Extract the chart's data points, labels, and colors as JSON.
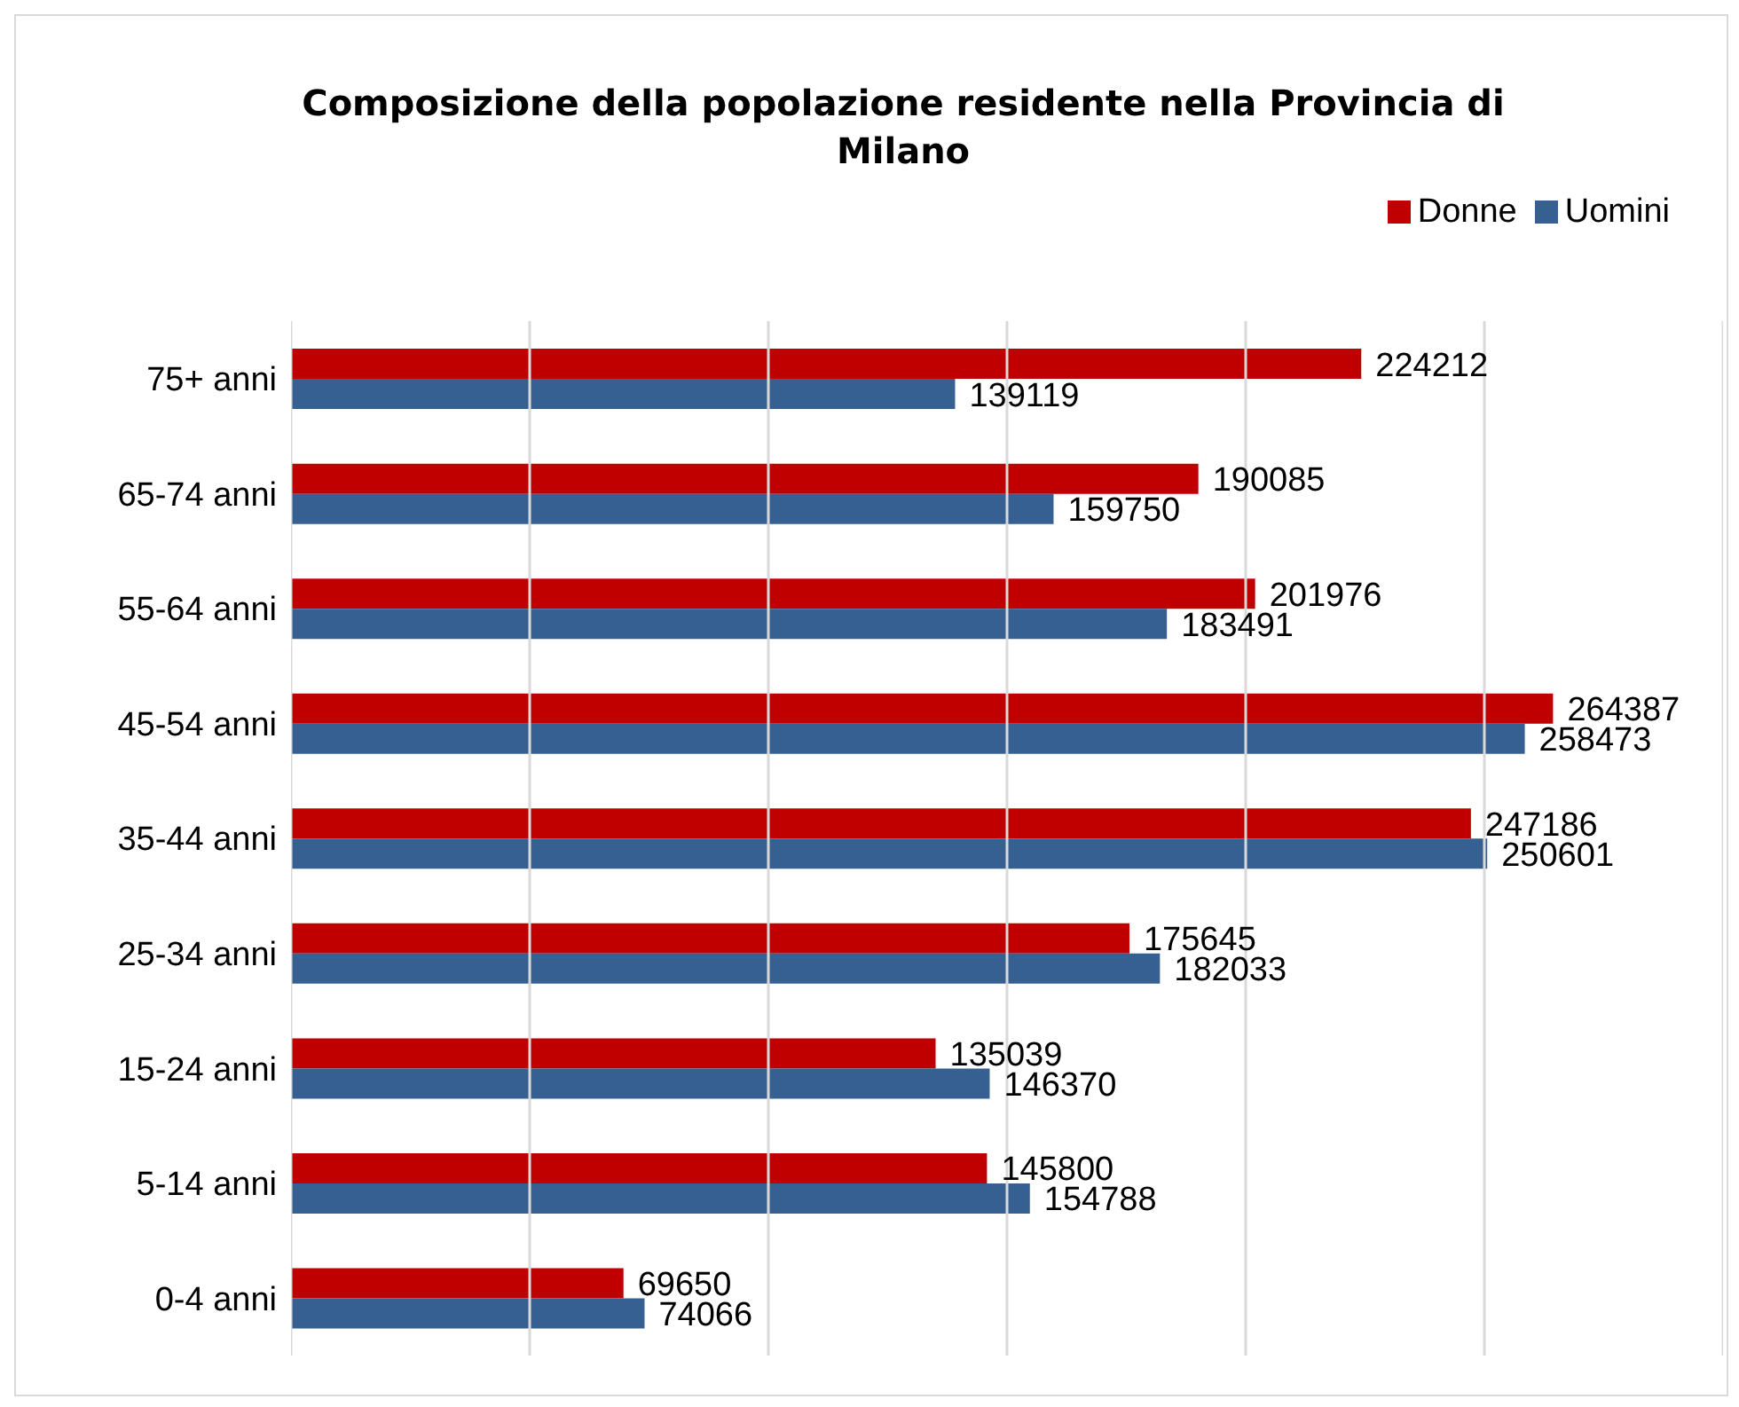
{
  "chart_data": {
    "type": "bar",
    "orientation": "horizontal",
    "title": "Composizione della popolazione residente nella Provincia di Milano",
    "categories": [
      "75+ anni",
      "65-74 anni",
      "55-64 anni",
      "45-54 anni",
      "35-44 anni",
      "25-34 anni",
      "15-24 anni",
      "5-14 anni",
      "0-4 anni"
    ],
    "series": [
      {
        "name": "Donne",
        "color": "#c00000",
        "values": [
          224212,
          190085,
          201976,
          264387,
          247186,
          175645,
          135039,
          145800,
          69650
        ]
      },
      {
        "name": "Uomini",
        "color": "#376092",
        "values": [
          139119,
          159750,
          183491,
          258473,
          250601,
          182033,
          146370,
          154788,
          74066
        ]
      }
    ],
    "xlim": [
      0,
      300000
    ],
    "xticks": [
      {
        "value": 0,
        "label": null
      },
      {
        "value": 50000,
        "label": null
      },
      {
        "value": 100000,
        "label": null
      },
      {
        "value": 150000,
        "label": null
      },
      {
        "value": 200000,
        "label": null
      },
      {
        "value": 250000,
        "label": null
      },
      {
        "value": 300000,
        "label": null
      }
    ],
    "tick_labels": "y",
    "grid": "x",
    "legend": "top right",
    "data_labels": true
  }
}
